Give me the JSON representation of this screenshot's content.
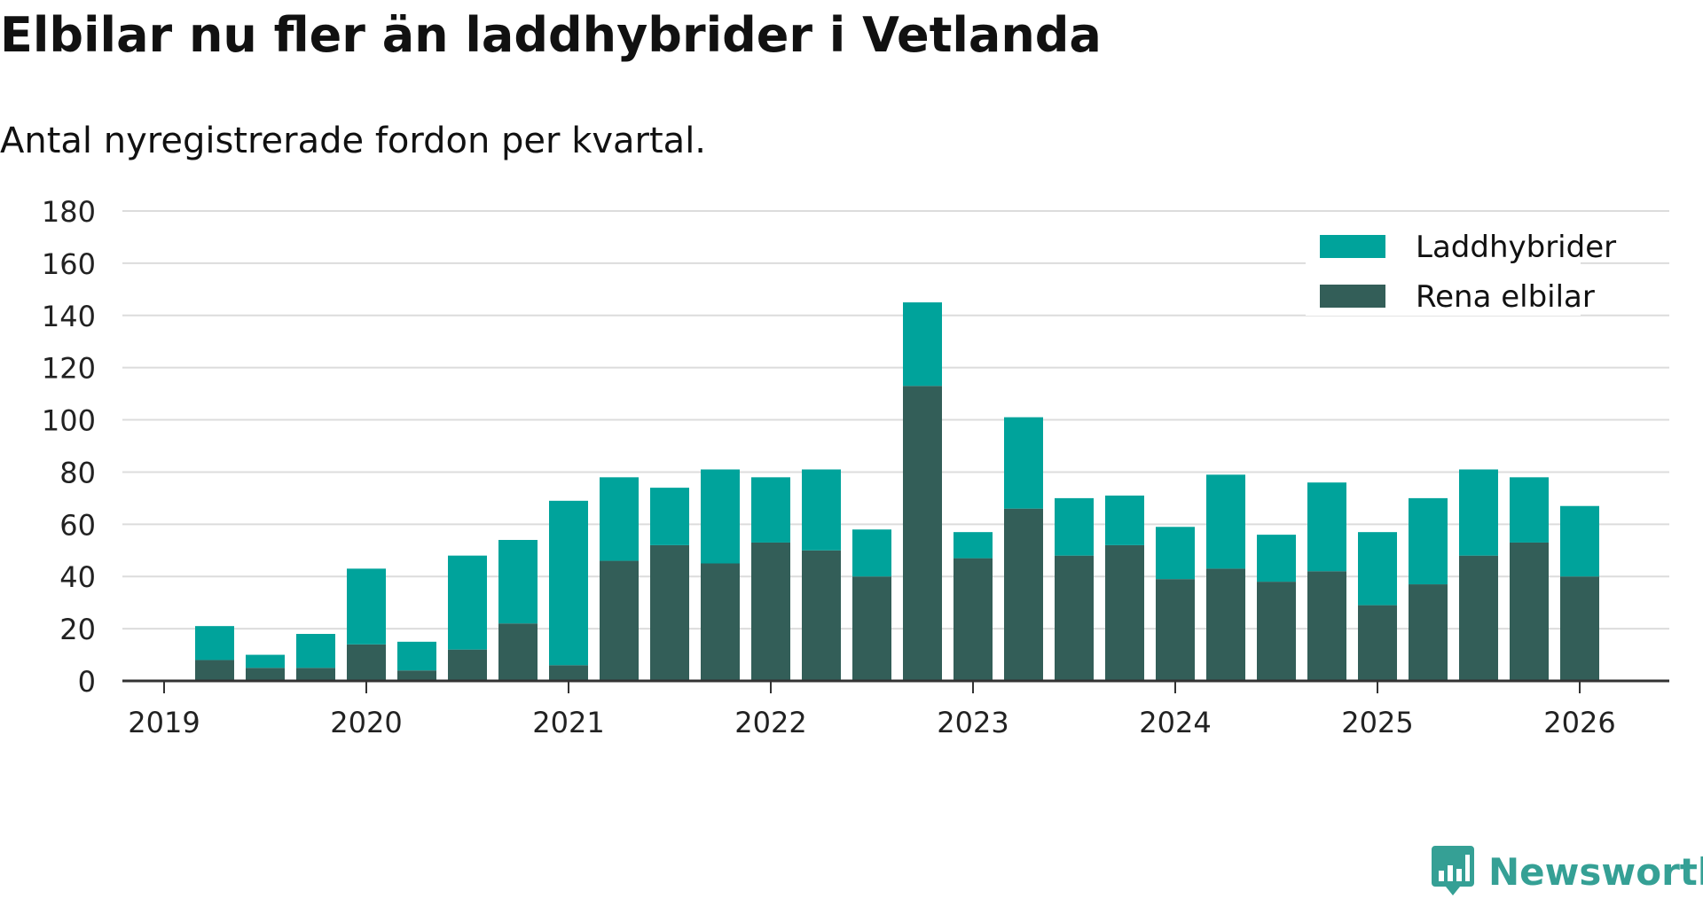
{
  "chart_data": {
    "type": "bar",
    "stacked": true,
    "title": "Elbilar nu fler än laddhybrider i Vetlanda",
    "subtitle": "Antal nyregistrerade fordon per kvartal.",
    "xlabel": "",
    "ylabel": "",
    "ylim": [
      0,
      180
    ],
    "yticks": [
      "0",
      "20",
      "40",
      "60",
      "80",
      "100",
      "120",
      "140",
      "160",
      "180"
    ],
    "xticks": [
      "2019",
      "2020",
      "2021",
      "2022",
      "2023",
      "2024",
      "2025",
      "2026"
    ],
    "grid": true,
    "legend_position": "top-right",
    "categories": [
      "2019 Q2",
      "2019 Q3",
      "2019 Q4",
      "2020 Q1",
      "2020 Q2",
      "2020 Q3",
      "2020 Q4",
      "2021 Q1",
      "2021 Q2",
      "2021 Q3",
      "2021 Q4",
      "2022 Q1",
      "2022 Q2",
      "2022 Q3",
      "2022 Q4",
      "2023 Q1",
      "2023 Q2",
      "2023 Q3",
      "2023 Q4",
      "2024 Q1",
      "2024 Q2",
      "2024 Q3",
      "2024 Q4",
      "2025 Q1",
      "2025 Q2",
      "2025 Q3",
      "2025 Q4",
      "2026 Q1"
    ],
    "series": [
      {
        "name": "Rena elbilar",
        "color": "#335e58",
        "values": [
          8,
          5,
          5,
          14,
          4,
          12,
          22,
          6,
          46,
          52,
          45,
          53,
          50,
          40,
          113,
          47,
          66,
          48,
          52,
          39,
          43,
          38,
          42,
          29,
          37,
          48,
          53,
          40
        ]
      },
      {
        "name": "Laddhybrider",
        "color": "#00a39b",
        "values": [
          13,
          5,
          13,
          29,
          11,
          36,
          32,
          63,
          32,
          22,
          36,
          25,
          31,
          18,
          32,
          10,
          35,
          22,
          19,
          20,
          36,
          18,
          34,
          28,
          33,
          33,
          25,
          27
        ]
      }
    ]
  },
  "legend": {
    "items": [
      "Laddhybrider",
      "Rena elbilar"
    ]
  },
  "branding": {
    "name": "Newsworthy",
    "icon": "bar-chart-speech-bubble-icon"
  }
}
